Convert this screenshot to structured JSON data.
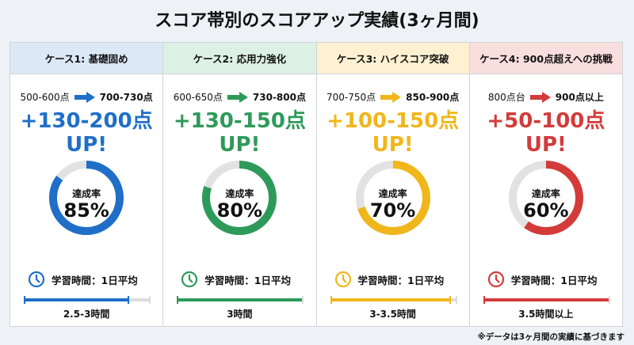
{
  "title": "スコア帯別のスコアアップ実績(3ヶ月間)",
  "cases": [
    {
      "header": "ケース1: 基礎固め",
      "from": "500-600点",
      "to": "700-730点",
      "gain": "+130-200点",
      "up": "UP!",
      "rate_label": "達成率",
      "rate": "85%",
      "rate_value": 85,
      "study_label": "学習時間：1日平均",
      "hours": "2.5-3時間",
      "bar_fill": 0.83,
      "color": "#1f6fc8",
      "header_bg": "#dde8f6"
    },
    {
      "header": "ケース2: 応用力強化",
      "from": "600-650点",
      "to": "730-800点",
      "gain": "+130-150点",
      "up": "UP!",
      "rate_label": "達成率",
      "rate": "80%",
      "rate_value": 80,
      "study_label": "学習時間：1日平均",
      "hours": "3時間",
      "bar_fill": 1.0,
      "color": "#2e9a5a",
      "header_bg": "#ddf0e4"
    },
    {
      "header": "ケース3: ハイスコア突破",
      "from": "700-750点",
      "to": "850-900点",
      "gain": "+100-150点",
      "up": "UP!",
      "rate_label": "達成率",
      "rate": "70%",
      "rate_value": 70,
      "study_label": "学習時間：1日平均",
      "hours": "3-3.5時間",
      "bar_fill": 0.95,
      "color": "#f0b61a",
      "header_bg": "#fdf1d2"
    },
    {
      "header": "ケース4: 900点超えへの挑戦",
      "from": "800点台",
      "to": "900点以上",
      "gain": "+50-100点",
      "up": "UP!",
      "rate_label": "達成率",
      "rate": "60%",
      "rate_value": 60,
      "study_label": "学習時間：1日平均",
      "hours": "3.5時間以上",
      "bar_fill": 1.0,
      "color": "#d33b3b",
      "header_bg": "#f9dede"
    }
  ],
  "footnote": "※データは3ヶ月間の実績に基づきます"
}
